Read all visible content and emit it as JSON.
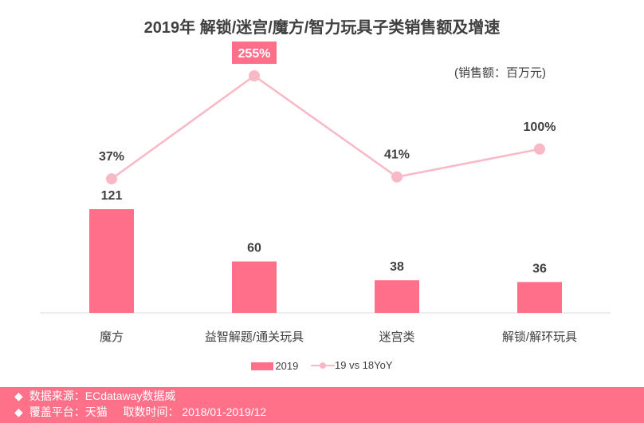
{
  "chart_data": {
    "type": "bar+line",
    "title": "2019年 解锁/迷宫/魔方/智力玩具子类销售额及增速",
    "unit": "(销售额：百万元)",
    "categories": [
      "魔方",
      "益智解题/通关玩具",
      "迷宫类",
      "解锁/解环玩具"
    ],
    "series": [
      {
        "name": "2019",
        "type": "bar",
        "values": [
          121,
          60,
          38,
          36
        ],
        "labels": [
          "121",
          "60",
          "38",
          "36"
        ],
        "color": "#ff6f8a"
      },
      {
        "name": "19 vs 18YoY",
        "type": "line",
        "values": [
          37,
          255,
          41,
          100
        ],
        "labels": [
          "37%",
          "255%",
          "41%",
          "100%"
        ],
        "color": "#f9b8c5"
      }
    ],
    "highlight_label_color": "#ff6f8a",
    "legend": "bottom"
  },
  "footer": {
    "bullet": "◆",
    "source": "数据来源：ECdataway数据威",
    "platform": "覆盖平台：天猫",
    "period": "取数时间： 2018/01-2019/12"
  }
}
